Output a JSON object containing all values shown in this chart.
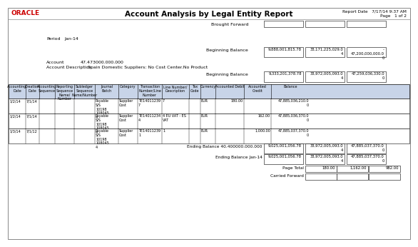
{
  "title": "Account Analysis by Legal Entity Report",
  "oracle_logo": "ORACLE",
  "report_date": "Report Date   7/17/14 9:37 AM",
  "page_info": "Page   1 of 2",
  "brought_forward_label": "Brought Forward",
  "period_label": "Period",
  "period_value": "Jan-14",
  "account_label": "Account",
  "account_value": "47.473000.000.000",
  "account_desc_label": "Account Description",
  "account_desc_value": "Spain Domestic Suppliers: No Cost Center.No Product",
  "beginning_balance_label": "Beginning Balance",
  "bb_val1": "9,888,001,815.78",
  "bb_val2": "33,171,225,029.0\n4",
  "bb_val3": "-\n47,200,000,000.0\n0",
  "bb2_val1": "9,333,201,378.78",
  "bb2_val2": "33,972,005,093.0\n4",
  "bb2_val3": "47,259,036,330.0\n0",
  "col_headers": [
    "Accounting\nDate",
    "Creation\nDate",
    "Accounting\nSequence",
    "Reporting\nSequence\nName/\nNumber",
    "Subledger\nSequence\nName/Number",
    "Journal\nBatch",
    "Category",
    "Transaction\nNumber/Line\nNumber",
    "Line Number/\nDescription",
    "Tax\nCode",
    "Currency",
    "Accounted Debit",
    "Accounted\nCredit",
    "Balance"
  ],
  "rows": [
    [
      "1/2/14",
      "7/1/14",
      "",
      "",
      "",
      "Payable\nS/S\n10198\n108045\n4",
      "Supplier\nCost",
      "TE14011239\n7",
      "7",
      "",
      "EUR",
      "180.00",
      "",
      "47,885,036,210.0\n0"
    ],
    [
      "1/2/14",
      "7/1/14",
      "",
      "",
      "",
      "Payable\nS/S\n10198\n108045\n4",
      "Supplier\nCost",
      "TE14011234\n4",
      "4 EU VAT - ES\nVAT",
      "",
      "EUR",
      "",
      "162.00",
      "47,885,036,370.0\n0"
    ],
    [
      "1/3/14",
      "7/1/12",
      "",
      "",
      "",
      "Payable\nS/S\n10198\n108045\n4",
      "Supplier\nCost",
      "TE14011239\n1",
      "1",
      "",
      "EUR",
      "",
      "1,000.00",
      "47,885,037,370.0\n0"
    ]
  ],
  "ending_balance_label": "Ending Balance 40.400000.000.000",
  "eb_val1": "9,025,001,056.78",
  "eb_val2": "33,972,005,093.0\n4",
  "eb_val3": "47,885,037,370.0\n0",
  "ending_balance_jan_label": "Ending Balance Jan-14",
  "ebj_val1": "9,025,001,056.78",
  "ebj_val2": "33,972,005,093.0\n4",
  "ebj_val3": "47,885,037,370.0\n0",
  "page_total_label": "Page Total",
  "pt_debit": "180.00",
  "pt_credit": "1,162.00",
  "pt_balance": "982.00",
  "carried_forward_label": "Carried Forward",
  "bg_color": "#ffffff",
  "header_bg": "#c8d4e8",
  "border_color": "#000000"
}
